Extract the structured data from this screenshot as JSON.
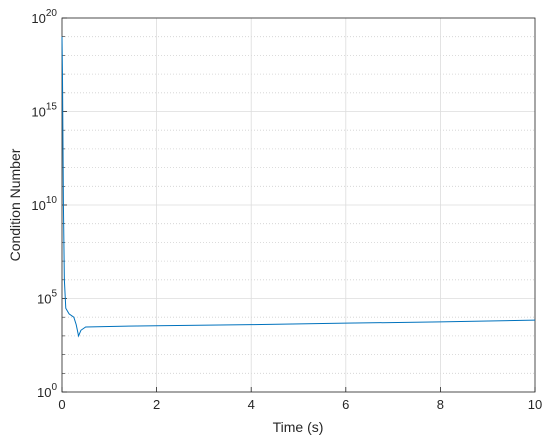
{
  "chart_data": {
    "type": "line",
    "xlabel": "Time (s)",
    "ylabel": "Condition Number",
    "x": [
      0,
      0.01,
      0.03,
      0.05,
      0.08,
      0.15,
      0.25,
      0.3,
      0.35,
      0.4,
      0.5,
      1,
      2,
      4,
      6,
      8,
      10
    ],
    "series": [
      {
        "color": "#0072bd",
        "values": [
          1e+19,
          1e+17,
          10000000000.0,
          1000000.0,
          30000,
          15000,
          10000,
          4000,
          1000,
          2000,
          3000,
          3200,
          3500,
          4000,
          4800,
          5600,
          7000
        ]
      }
    ],
    "xlim": [
      0,
      10
    ],
    "xticks": [
      0,
      2,
      4,
      6,
      8,
      10
    ],
    "ylim": [
      1,
      1e+20
    ],
    "yscale": "log",
    "yticks": [
      {
        "value": 1,
        "label": "10",
        "exp": "0"
      },
      {
        "value": 100000.0,
        "label": "10",
        "exp": "5"
      },
      {
        "value": 10000000000.0,
        "label": "10",
        "exp": "10"
      },
      {
        "value": 1000000000000000.0,
        "label": "10",
        "exp": "15"
      },
      {
        "value": 1e+20,
        "label": "10",
        "exp": "20"
      }
    ],
    "yminor_ticks": [
      10,
      100,
      1000,
      10000,
      1000000.0,
      10000000.0,
      100000000.0,
      1000000000.0,
      100000000000.0,
      1000000000000.0,
      10000000000000.0,
      100000000000000.0,
      1e+16,
      1e+17,
      1e+18,
      1e+19
    ],
    "grid": true,
    "minor_grid": true
  }
}
